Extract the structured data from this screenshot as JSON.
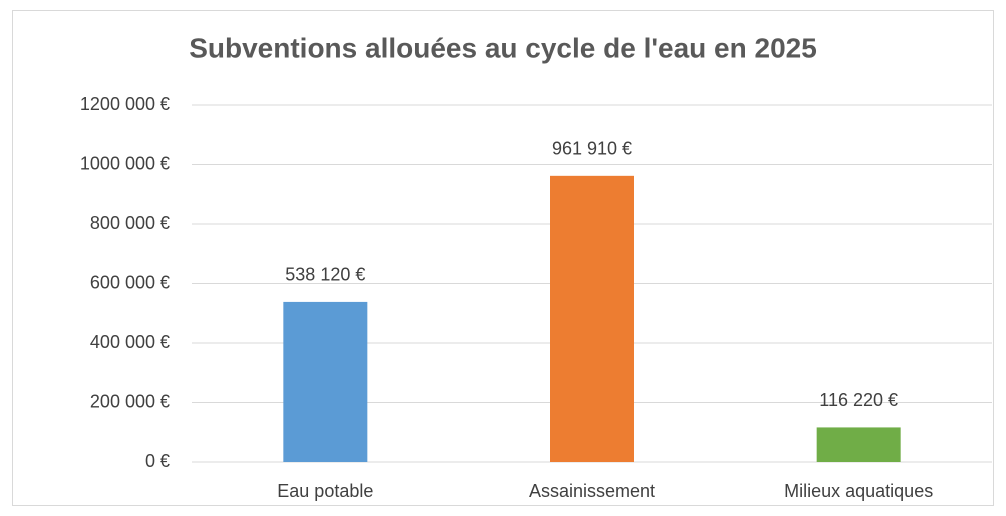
{
  "chart_data": {
    "type": "bar",
    "title": "Subventions allouées au cycle de l'eau en 2025",
    "categories": [
      "Eau potable",
      "Assainissement",
      "Milieux aquatiques"
    ],
    "values": [
      538120,
      961910,
      116220
    ],
    "value_labels": [
      "538 120 €",
      "961 910 €",
      "116 220 €"
    ],
    "colors": [
      "#5b9bd5",
      "#ed7d31",
      "#70ad47"
    ],
    "ylim": [
      0,
      1200000
    ],
    "yticks": [
      {
        "value": 0,
        "label": "0 €"
      },
      {
        "value": 200000,
        "label": "200 000 €"
      },
      {
        "value": 400000,
        "label": "400 000 €"
      },
      {
        "value": 600000,
        "label": "600 000 €"
      },
      {
        "value": 800000,
        "label": "800 000 €"
      },
      {
        "value": 1000000,
        "label": "1000 000 €"
      },
      {
        "value": 1200000,
        "label": "1200 000 €"
      }
    ],
    "grid": true
  }
}
